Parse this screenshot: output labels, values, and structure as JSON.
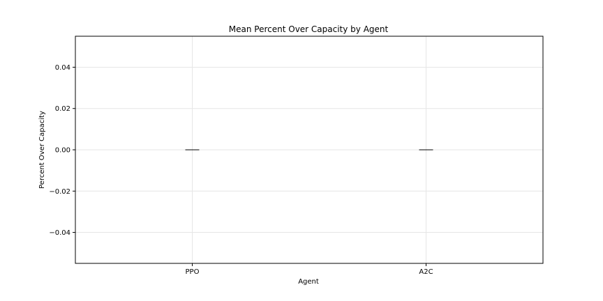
{
  "chart_data": {
    "type": "bar",
    "title": "Mean Percent Over Capacity by Agent",
    "xlabel": "Agent",
    "ylabel": "Percent Over Capacity",
    "categories": [
      "PPO",
      "A2C"
    ],
    "values": [
      0.0,
      0.0
    ],
    "ylim": [
      -0.055,
      0.055
    ],
    "yticks": [
      -0.04,
      -0.02,
      0.0,
      0.02,
      0.04
    ],
    "ytick_labels": [
      "−0.04",
      "−0.02",
      "0.00",
      "0.02",
      "0.04"
    ],
    "grid": true,
    "bar_color": "#000000"
  }
}
